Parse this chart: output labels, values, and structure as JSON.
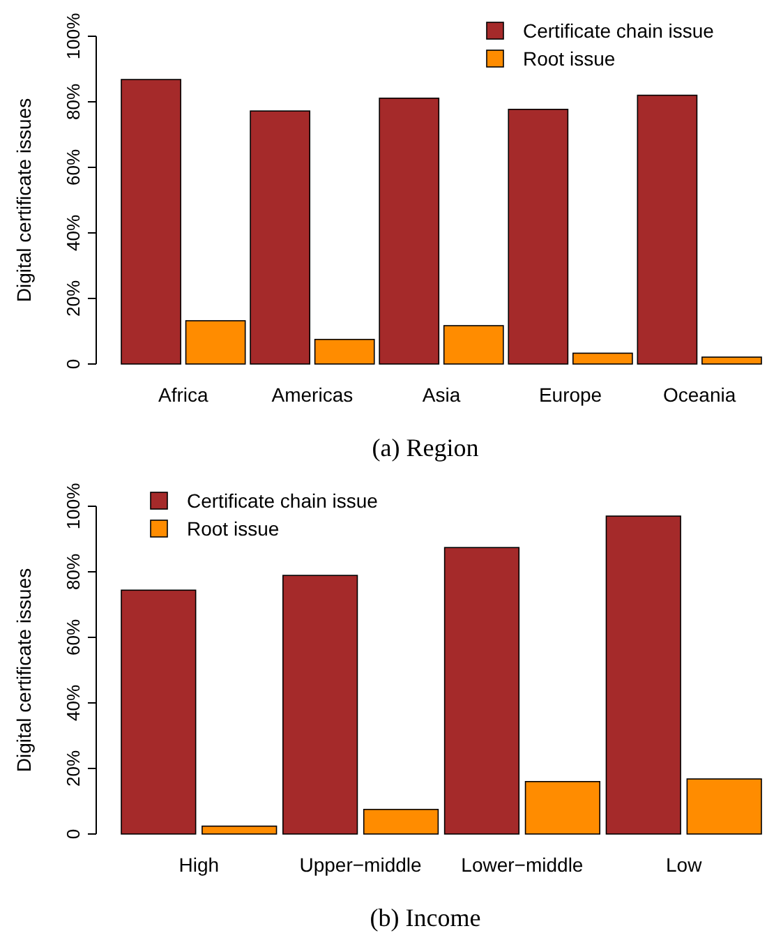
{
  "chart_data": [
    {
      "type": "bar",
      "title": "(a) Region",
      "ylabel": "Digital certificate issues",
      "categories": [
        "Africa",
        "Americas",
        "Asia",
        "Europe",
        "Oceania"
      ],
      "series": [
        {
          "name": "Certificate chain issue",
          "color": "#a52a2a",
          "values": [
            86.8,
            77.2,
            81.1,
            77.7,
            82.0
          ]
        },
        {
          "name": "Root issue",
          "color": "#ff8c00",
          "values": [
            13.2,
            7.5,
            11.7,
            3.3,
            2.1
          ]
        }
      ],
      "ylim": [
        0,
        100
      ],
      "yticks": [
        0,
        {
          "value": 20,
          "label": "20%"
        },
        {
          "value": 40,
          "label": "40%"
        },
        {
          "value": 60,
          "label": "60%"
        },
        {
          "value": 80,
          "label": "80%"
        },
        {
          "value": 100,
          "label": "100%"
        }
      ],
      "legend": "top right"
    },
    {
      "type": "bar",
      "title": "(b) Income",
      "ylabel": "Digital certificate issues",
      "categories": [
        "High",
        "Upper−middle",
        "Lower−middle",
        "Low"
      ],
      "series": [
        {
          "name": "Certificate chain issue",
          "color": "#a52a2a",
          "values": [
            74.4,
            78.9,
            87.4,
            97.0
          ]
        },
        {
          "name": "Root issue",
          "color": "#ff8c00",
          "values": [
            2.4,
            7.5,
            16.0,
            16.8
          ]
        }
      ],
      "ylim": [
        0,
        100
      ],
      "yticks": [
        0,
        {
          "value": 20,
          "label": "20%"
        },
        {
          "value": 40,
          "label": "40%"
        },
        {
          "value": 60,
          "label": "60%"
        },
        {
          "value": 80,
          "label": "80%"
        },
        {
          "value": 100,
          "label": "100%"
        }
      ],
      "legend": "top left"
    }
  ]
}
